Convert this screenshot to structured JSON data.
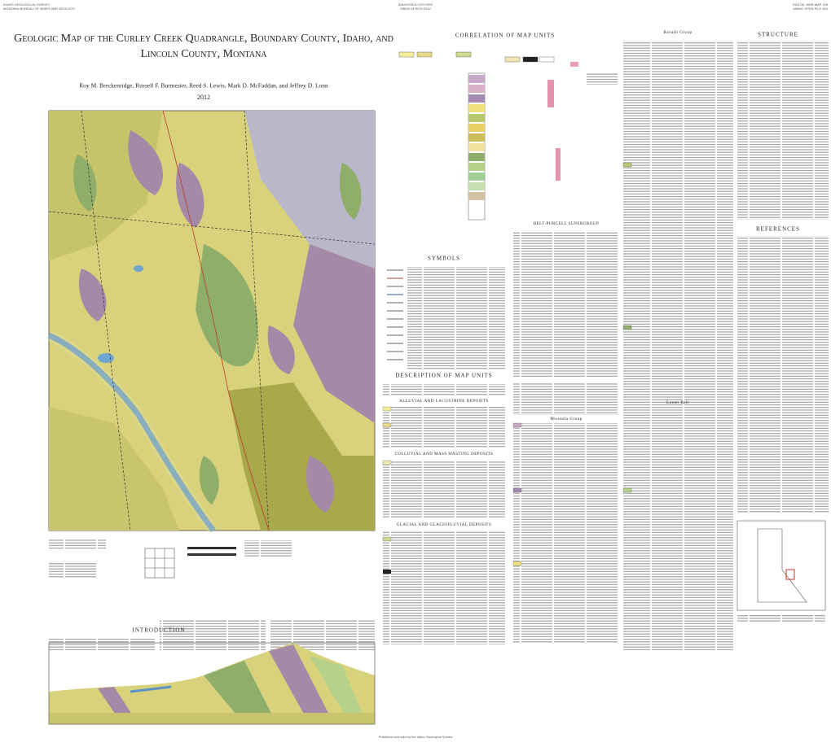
{
  "header": {
    "left": [
      "IDAHO GEOLOGICAL SURVEY",
      "MONTANA BUREAU OF MINES AND GEOLOGY"
    ],
    "center": [
      "IDAHOGEOLOGY.ORG",
      "MBMG.MTECH.EDU"
    ],
    "right": [
      "DIGITAL WEB MAP 168",
      "MBMG OPEN-FILE 654"
    ]
  },
  "title": [
    "Geologic Map of the Curley Creek Quadrangle, Boundary County, Idaho, and",
    "Lincoln County, Montana"
  ],
  "authors": "Roy M. Breckenridge, Russell F. Burmester, Reed S. Lewis, Mark D. McFaddan, and Jeffrey D. Lonn",
  "year": "2012",
  "sections": {
    "correlation": "CORRELATION OF MAP UNITS",
    "symbols": "SYMBOLS",
    "description": "DESCRIPTION OF MAP UNITS",
    "structure": "STRUCTURE",
    "references": "REFERENCES",
    "introduction": "INTRODUCTION"
  },
  "subheadings": [
    "ALLUVIAL AND LACUSTRINE DEPOSITS",
    "COLLUVIAL AND MASS WASTING DEPOSITS",
    "GLACIAL AND GLACIOFLUVIAL DEPOSITS",
    "BELT-PURCELL SUPERGROUP",
    "Missoula Group",
    "Ravalli Group",
    "Lower Belt"
  ],
  "footer": "Published and sold by the Idaho Geological Survey"
}
